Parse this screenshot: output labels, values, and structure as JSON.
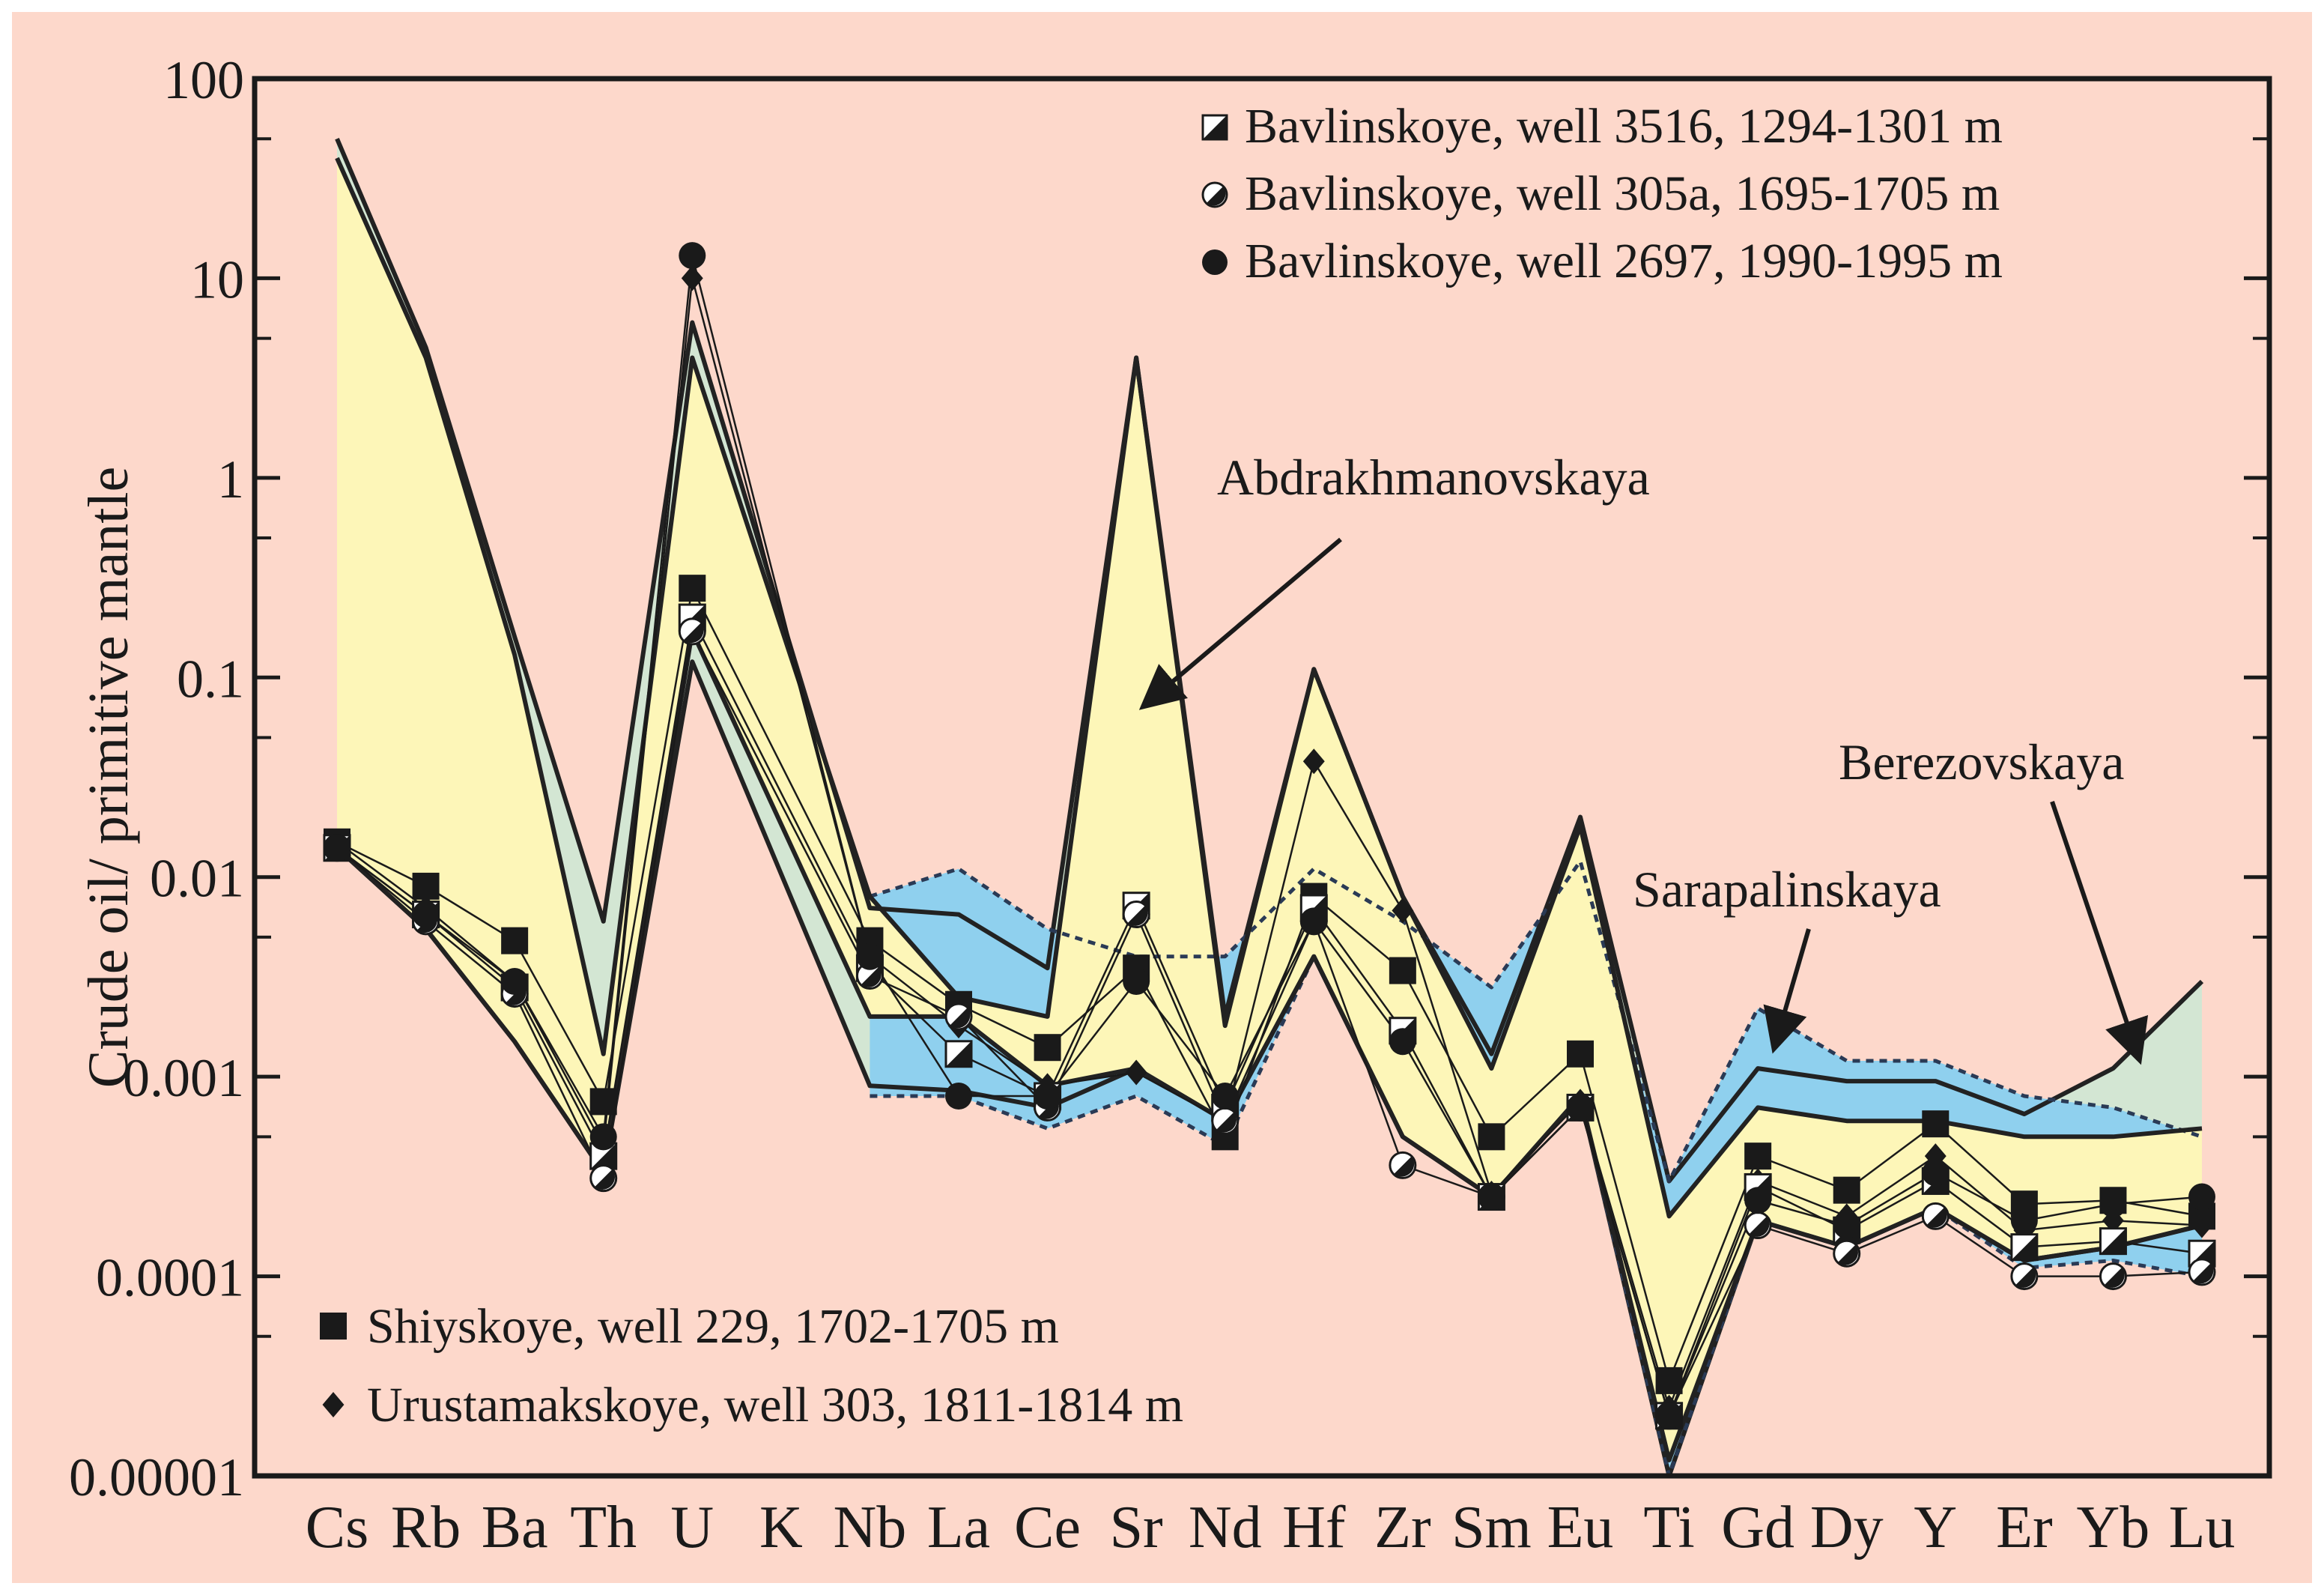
{
  "chart_data": {
    "type": "line",
    "scale": "log",
    "ylabel": "Crude oil/ primitive mantle",
    "ylim": [
      1e-05,
      100
    ],
    "y_ticks": [
      {
        "value": 100,
        "label": "100"
      },
      {
        "value": 10,
        "label": "10"
      },
      {
        "value": 1,
        "label": "1"
      },
      {
        "value": 0.1,
        "label": "0.1"
      },
      {
        "value": 0.01,
        "label": "0.01"
      },
      {
        "value": 0.001,
        "label": "0.001"
      },
      {
        "value": 0.0001,
        "label": "0.0001"
      },
      {
        "value": 1e-05,
        "label": "0.00001"
      }
    ],
    "categories": [
      "Cs",
      "Rb",
      "Ba",
      "Th",
      "U",
      "K",
      "Nb",
      "La",
      "Ce",
      "Sr",
      "Nd",
      "Hf",
      "Zr",
      "Sm",
      "Eu",
      "Ti",
      "Gd",
      "Dy",
      "Y",
      "Er",
      "Yb",
      "Lu"
    ],
    "x_ticks": [
      "Cs",
      "Rb",
      "Ba",
      "Th",
      "U",
      "K",
      "Nb",
      "La",
      "Ce",
      "Sr",
      "Nd",
      "Hf",
      "Zr",
      "Sm",
      "Eu",
      "Ti",
      "Gd",
      "Dy",
      "Y",
      "Er",
      "Yb",
      "Lu"
    ],
    "colors": {
      "background": "#fdd8cb",
      "yellow_field": "#fdf6b8",
      "green_field": "#d3e6d3",
      "blue_field": "#8fd0ee",
      "line": "#1a1a1a"
    },
    "fields": [
      {
        "name": "Abdrakhmanovskaya",
        "label": "Abdrakhmanovskaya",
        "color": "#fdf6b8",
        "upper": [
          [
            0,
            40
          ],
          [
            1,
            4
          ],
          [
            2,
            0.13
          ],
          [
            3,
            0.0013
          ],
          [
            4,
            4
          ],
          [
            6,
            0.008
          ],
          [
            7,
            0.0025
          ],
          [
            8,
            0.002
          ],
          [
            9,
            4
          ],
          [
            10,
            0.0018
          ],
          [
            11,
            0.11
          ],
          [
            12,
            0.008
          ],
          [
            13,
            0.0011
          ],
          [
            14,
            0.018
          ],
          [
            15,
            0.0002
          ],
          [
            16,
            0.0007
          ],
          [
            17,
            0.0006
          ],
          [
            18,
            0.0006
          ],
          [
            19,
            0.0005
          ],
          [
            20,
            0.0005
          ],
          [
            21,
            0.00055
          ]
        ],
        "lower": [
          [
            0,
            0.014
          ],
          [
            1,
            0.0055
          ],
          [
            2,
            0.0015
          ],
          [
            3,
            0.00033
          ],
          [
            4,
            0.17
          ],
          [
            6,
            0.002
          ],
          [
            7,
            0.002
          ],
          [
            8,
            0.0009
          ],
          [
            9,
            0.0011
          ],
          [
            10,
            0.0006
          ],
          [
            11,
            0.004
          ],
          [
            12,
            0.0005
          ],
          [
            13,
            0.00025
          ],
          [
            14,
            0.0008
          ],
          [
            15,
            1.2e-05
          ],
          [
            16,
            0.00019
          ],
          [
            17,
            0.00014
          ],
          [
            18,
            0.00022
          ],
          [
            19,
            0.00012
          ],
          [
            20,
            0.00014
          ],
          [
            21,
            0.00018
          ]
        ]
      },
      {
        "name": "Sarapalinskaya",
        "label": "Sarapalinskaya",
        "color": "#d3e6d3",
        "upper": [
          [
            0,
            50
          ],
          [
            1,
            4.5
          ],
          [
            2,
            0.16
          ],
          [
            3,
            0.006
          ],
          [
            4,
            6
          ],
          [
            6,
            0.007
          ],
          [
            7,
            0.0065
          ],
          [
            8,
            0.0035
          ],
          [
            9,
            4
          ],
          [
            10,
            0.002
          ],
          [
            11,
            0.11
          ],
          [
            12,
            0.008
          ],
          [
            13,
            0.0013
          ],
          [
            14,
            0.02
          ],
          [
            15,
            0.0003
          ],
          [
            16,
            0.0011
          ],
          [
            17,
            0.00095
          ],
          [
            18,
            0.00095
          ],
          [
            19,
            0.00065
          ],
          [
            20,
            0.0011
          ],
          [
            21,
            0.003
          ]
        ],
        "lower": [
          [
            0,
            0.014
          ],
          [
            1,
            0.0055
          ],
          [
            2,
            0.0015
          ],
          [
            3,
            0.00033
          ],
          [
            4,
            0.12
          ],
          [
            6,
            0.0009
          ],
          [
            7,
            0.00085
          ],
          [
            8,
            0.0007
          ],
          [
            9,
            0.0011
          ],
          [
            10,
            0.0006
          ],
          [
            11,
            0.004
          ],
          [
            12,
            0.0005
          ],
          [
            13,
            0.00025
          ],
          [
            14,
            0.0008
          ],
          [
            15,
            1e-05
          ],
          [
            16,
            0.00019
          ],
          [
            17,
            0.00014
          ],
          [
            18,
            0.00022
          ],
          [
            19,
            0.00012
          ],
          [
            20,
            0.00014
          ],
          [
            21,
            0.00018
          ]
        ]
      },
      {
        "name": "Berezovskaya",
        "label": "Berezovskaya",
        "color": "#8fd0ee",
        "upper": [
          [
            6,
            0.008
          ],
          [
            7,
            0.011
          ],
          [
            8,
            0.0055
          ],
          [
            9,
            0.004
          ],
          [
            10,
            0.004
          ],
          [
            11,
            0.011
          ],
          [
            12,
            0.006
          ],
          [
            13,
            0.0028
          ],
          [
            14,
            0.012
          ],
          [
            15,
            0.0003
          ],
          [
            16,
            0.0022
          ],
          [
            17,
            0.0012
          ],
          [
            18,
            0.0012
          ],
          [
            19,
            0.0008
          ],
          [
            20,
            0.0007
          ],
          [
            21,
            0.0005
          ]
        ],
        "lower": [
          [
            6,
            0.0008
          ],
          [
            7,
            0.0008
          ],
          [
            8,
            0.00055
          ],
          [
            9,
            0.0008
          ],
          [
            10,
            0.00045
          ],
          [
            11,
            0.004
          ],
          [
            12,
            0.0005
          ],
          [
            13,
            0.00025
          ],
          [
            14,
            0.0008
          ],
          [
            15,
            1e-05
          ],
          [
            16,
            0.00019
          ],
          [
            17,
            0.00014
          ],
          [
            18,
            0.00022
          ],
          [
            19,
            0.00011
          ],
          [
            20,
            0.00012
          ],
          [
            21,
            0.0001
          ]
        ]
      }
    ],
    "series": [
      {
        "name": "Shiyskoye, well 229, 1702-1705 m",
        "marker": "square-filled",
        "values": [
          [
            0,
            0.015
          ],
          [
            1,
            0.009
          ],
          [
            2,
            0.0048
          ],
          [
            3,
            0.00075
          ],
          [
            4,
            0.28
          ],
          [
            6,
            0.0048
          ],
          [
            7,
            0.0023
          ],
          [
            8,
            0.0014
          ],
          [
            9,
            0.0035
          ],
          [
            10,
            0.0005
          ],
          [
            11,
            0.008
          ],
          [
            12,
            0.0034
          ],
          [
            13,
            0.0005
          ],
          [
            14,
            0.0013
          ],
          [
            15,
            3e-05
          ],
          [
            16,
            0.0004
          ],
          [
            17,
            0.00027
          ],
          [
            18,
            0.00058
          ],
          [
            19,
            0.00023
          ],
          [
            20,
            0.00024
          ],
          [
            21,
            0.0002
          ]
        ]
      },
      {
        "name": "Urustamakskoye, well 303, 1811-1814 m",
        "marker": "diamond-filled",
        "values": [
          [
            0,
            0.015
          ],
          [
            1,
            0.007
          ],
          [
            2,
            0.003
          ],
          [
            3,
            0.00045
          ],
          [
            4,
            10
          ],
          [
            6,
            0.004
          ],
          [
            7,
            0.0018
          ],
          [
            8,
            0.0009
          ],
          [
            9,
            0.00105
          ],
          [
            10,
            0.0006
          ],
          [
            11,
            0.038
          ],
          [
            12,
            0.0068
          ],
          [
            13,
            0.00026
          ],
          [
            14,
            0.00075
          ],
          [
            15,
            2.2e-05
          ],
          [
            16,
            0.0003
          ],
          [
            17,
            0.0002
          ],
          [
            18,
            0.0004
          ],
          [
            19,
            0.00017
          ],
          [
            20,
            0.00019
          ],
          [
            21,
            0.00018
          ]
        ]
      },
      {
        "name": "Bavlinskoye, well 3516, 1294-1301 m",
        "marker": "square-half",
        "values": [
          [
            0,
            0.014
          ],
          [
            1,
            0.0065
          ],
          [
            2,
            0.0028
          ],
          [
            3,
            0.0004
          ],
          [
            4,
            0.2
          ],
          [
            6,
            0.0035
          ],
          [
            7,
            0.0013
          ],
          [
            8,
            0.0008
          ],
          [
            9,
            0.0072
          ],
          [
            10,
            0.0007
          ],
          [
            11,
            0.007
          ],
          [
            12,
            0.0017
          ],
          [
            13,
            0.00025
          ],
          [
            14,
            0.0007
          ],
          [
            15,
            2e-05
          ],
          [
            16,
            0.00028
          ],
          [
            17,
            0.00017
          ],
          [
            18,
            0.0003
          ],
          [
            19,
            0.00014
          ],
          [
            20,
            0.00015
          ],
          [
            21,
            0.00013
          ]
        ]
      },
      {
        "name": "Bavlinskoye, well 305a, 1695-1705 m",
        "marker": "circle-half",
        "values": [
          [
            0,
            0.014
          ],
          [
            1,
            0.006
          ],
          [
            2,
            0.0026
          ],
          [
            3,
            0.00031
          ],
          [
            4,
            0.17
          ],
          [
            6,
            0.0032
          ],
          [
            7,
            0.002
          ],
          [
            8,
            0.0007
          ],
          [
            9,
            0.0065
          ],
          [
            10,
            0.0006
          ],
          [
            11,
            0.006
          ],
          [
            12,
            0.00036
          ],
          [
            13,
            0.00025
          ],
          [
            14,
            0.0007
          ],
          [
            15,
            2e-05
          ],
          [
            16,
            0.00018
          ],
          [
            17,
            0.00013
          ],
          [
            18,
            0.0002
          ],
          [
            19,
            0.0001
          ],
          [
            20,
            0.0001
          ],
          [
            21,
            0.000105
          ]
        ]
      },
      {
        "name": "Bavlinskoye, well 2697, 1990-1995 m",
        "marker": "circle-filled",
        "values": [
          [
            0,
            0.014
          ],
          [
            1,
            0.0065
          ],
          [
            2,
            0.003
          ],
          [
            3,
            0.0005
          ],
          [
            4,
            13
          ],
          [
            6,
            0.004
          ],
          [
            7,
            0.0008
          ],
          [
            8,
            0.0008
          ],
          [
            9,
            0.003
          ],
          [
            10,
            0.0008
          ],
          [
            11,
            0.006
          ],
          [
            12,
            0.0015
          ],
          [
            13,
            0.00025
          ],
          [
            14,
            0.0007
          ],
          [
            15,
            2e-05
          ],
          [
            16,
            0.00024
          ],
          [
            17,
            0.00018
          ],
          [
            18,
            0.00033
          ],
          [
            19,
            0.00019
          ],
          [
            20,
            0.00023
          ],
          [
            21,
            0.00025
          ]
        ]
      }
    ],
    "annotations": [
      {
        "name": "Abdrakhmanovskaya",
        "text": "Abdrakhmanovskaya"
      },
      {
        "name": "Sarapalinskaya",
        "text": "Sarapalinskaya"
      },
      {
        "name": "Berezovskaya",
        "text": "Berezovskaya"
      }
    ],
    "legend_top": [
      {
        "label": "Bavlinskoye, well 3516, 1294-1301 m",
        "marker": "square-half"
      },
      {
        "label": "Bavlinskoye, well 305a, 1695-1705 m",
        "marker": "circle-half"
      },
      {
        "label": "Bavlinskoye, well 2697, 1990-1995 m",
        "marker": "circle-filled"
      }
    ],
    "legend_bottom": [
      {
        "label": "Shiyskoye, well 229, 1702-1705 m",
        "marker": "square-filled"
      },
      {
        "label": "Urustamakskoye, well 303, 1811-1814 m",
        "marker": "diamond-filled"
      }
    ]
  }
}
